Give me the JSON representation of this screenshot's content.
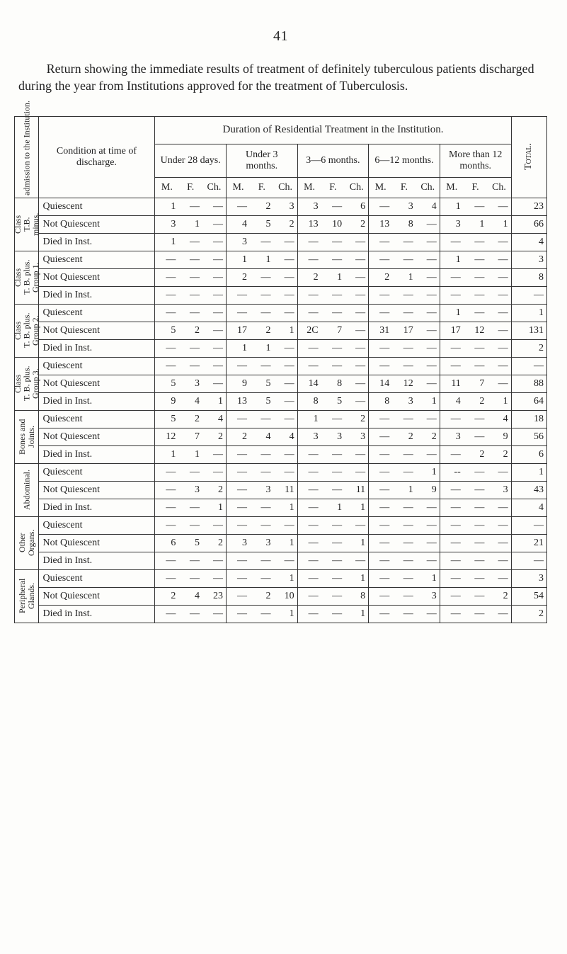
{
  "page_number": "41",
  "intro": "Return showing the immediate results of treatment of definitely tuberculous patients discharged during the year from Institutions approved for the treatment of Tuberculosis.",
  "duration_title": "Duration of Residential Treatment in the Institution.",
  "side_header": "admission to the Institution.",
  "cond_header": "Condition at time of discharge.",
  "periods": [
    "Under 28 days.",
    "Under 3 months.",
    "3—6 months.",
    "6—12 months.",
    "More than 12 months."
  ],
  "subcols": [
    "M.",
    "F.",
    "Ch."
  ],
  "total_label": "Total.",
  "dash": "—",
  "groups": [
    {
      "label": "Class\nT.B.\nminus.",
      "rows": [
        {
          "cond": "Quiescent",
          "cells": [
            "1",
            "—",
            "—",
            "—",
            "2",
            "3",
            "3",
            "—",
            "6",
            "—",
            "3",
            "4",
            "1",
            "—",
            "—"
          ],
          "total": "23"
        },
        {
          "cond": "Not Quiescent",
          "cells": [
            "3",
            "1",
            "—",
            "4",
            "5",
            "2",
            "13",
            "10",
            "2",
            "13",
            "8",
            "—",
            "3",
            "1",
            "1"
          ],
          "total": "66"
        },
        {
          "cond": "Died in Inst.",
          "cells": [
            "1",
            "—",
            "—",
            "3",
            "—",
            "—",
            "—",
            "—",
            "—",
            "—",
            "—",
            "—",
            "—",
            "—",
            "—"
          ],
          "total": "4"
        }
      ]
    },
    {
      "label": "Class\nT. B. plus.\nGroup 1.",
      "rows": [
        {
          "cond": "Quiescent",
          "cells": [
            "—",
            "—",
            "—",
            "1",
            "1",
            "—",
            "—",
            "—",
            "—",
            "—",
            "—",
            "—",
            "1",
            "—",
            "—"
          ],
          "total": "3"
        },
        {
          "cond": "Not Quiescent",
          "cells": [
            "—",
            "—",
            "—",
            "2",
            "—",
            "—",
            "2",
            "1",
            "—",
            "2",
            "1",
            "—",
            "—",
            "—",
            "—"
          ],
          "total": "8"
        },
        {
          "cond": "Died in Inst.",
          "cells": [
            "—",
            "—",
            "—",
            "—",
            "—",
            "—",
            "—",
            "—",
            "—",
            "—",
            "—",
            "—",
            "—",
            "—",
            "—"
          ],
          "total": "—"
        }
      ]
    },
    {
      "label": "Class\nT. B. plus.\nGroup 2.",
      "rows": [
        {
          "cond": "Quiescent",
          "cells": [
            "—",
            "—",
            "—",
            "—",
            "—",
            "—",
            "—",
            "—",
            "—",
            "—",
            "—",
            "—",
            "1",
            "—",
            "—"
          ],
          "total": "1"
        },
        {
          "cond": "Not Quiescent",
          "cells": [
            "5",
            "2",
            "—",
            "17",
            "2",
            "1",
            "2C",
            "7",
            "—",
            "31",
            "17",
            "—",
            "17",
            "12",
            "—"
          ],
          "total": "131"
        },
        {
          "cond": "Died in Inst.",
          "cells": [
            "—",
            "—",
            "—",
            "1",
            "1",
            "—",
            "—",
            "—",
            "—",
            "—",
            "—",
            "—",
            "—",
            "—",
            "—"
          ],
          "total": "2"
        }
      ]
    },
    {
      "label": "Class\nT. B. plus.\nGroup 3.",
      "rows": [
        {
          "cond": "Quiescent",
          "cells": [
            "—",
            "—",
            "—",
            "—",
            "—",
            "—",
            "—",
            "—",
            "—",
            "—",
            "—",
            "—",
            "—",
            "—",
            "—"
          ],
          "total": "—"
        },
        {
          "cond": "Not Quiescent",
          "cells": [
            "5",
            "3",
            "—",
            "9",
            "5",
            "—",
            "14",
            "8",
            "—",
            "14",
            "12",
            "—",
            "11",
            "7",
            "—"
          ],
          "total": "88"
        },
        {
          "cond": "Died in Inst.",
          "cells": [
            "9",
            "4",
            "1",
            "13",
            "5",
            "—",
            "8",
            "5",
            "—",
            "8",
            "3",
            "1",
            "4",
            "2",
            "1"
          ],
          "total": "64"
        }
      ]
    },
    {
      "label": "Bones and\nJoints.",
      "rows": [
        {
          "cond": "Quiescent",
          "cells": [
            "5",
            "2",
            "4",
            "—",
            "—",
            "—",
            "1",
            "—",
            "2",
            "—",
            "—",
            "—",
            "—",
            "—",
            "4"
          ],
          "total": "18"
        },
        {
          "cond": "Not Quiescent",
          "cells": [
            "12",
            "7",
            "2",
            "2",
            "4",
            "4",
            "3",
            "3",
            "3",
            "—",
            "2",
            "2",
            "3",
            "—",
            "9"
          ],
          "total": "56"
        },
        {
          "cond": "Died in Inst.",
          "cells": [
            "1",
            "1",
            "—",
            "—",
            "—",
            "—",
            "—",
            "—",
            "—",
            "—",
            "—",
            "—",
            "—",
            "2",
            "2"
          ],
          "total": "6"
        }
      ]
    },
    {
      "label": "Abdominal.",
      "rows": [
        {
          "cond": "Quiescent",
          "cells": [
            "—",
            "—",
            "—",
            "—",
            "—",
            "—",
            "—",
            "—",
            "—",
            "—",
            "—",
            "1",
            "--",
            "—",
            "—"
          ],
          "total": "1"
        },
        {
          "cond": "Not Quiescent",
          "cells": [
            "—",
            "3",
            "2",
            "—",
            "3",
            "11",
            "—",
            "—",
            "11",
            "—",
            "1",
            "9",
            "—",
            "—",
            "3"
          ],
          "total": "43"
        },
        {
          "cond": "Died in Inst.",
          "cells": [
            "—",
            "—",
            "1",
            "—",
            "—",
            "1",
            "—",
            "1",
            "1",
            "—",
            "—",
            "—",
            "—",
            "—",
            "—"
          ],
          "total": "4"
        }
      ]
    },
    {
      "label": "Other\nOrgans.",
      "rows": [
        {
          "cond": "Quiescent",
          "cells": [
            "—",
            "—",
            "—",
            "—",
            "—",
            "—",
            "—",
            "—",
            "—",
            "—",
            "—",
            "—",
            "—",
            "—",
            "—"
          ],
          "total": "—"
        },
        {
          "cond": "Not Quiescent",
          "cells": [
            "6",
            "5",
            "2",
            "3",
            "3",
            "1",
            "—",
            "—",
            "1",
            "—",
            "—",
            "—",
            "—",
            "—",
            "—"
          ],
          "total": "21"
        },
        {
          "cond": "Died in Inst.",
          "cells": [
            "—",
            "—",
            "—",
            "—",
            "—",
            "—",
            "—",
            "—",
            "—",
            "—",
            "—",
            "—",
            "—",
            "—",
            "—"
          ],
          "total": "—"
        }
      ]
    },
    {
      "label": "Peripheral\nGlands.",
      "rows": [
        {
          "cond": "Quiescent",
          "cells": [
            "—",
            "—",
            "—",
            "—",
            "—",
            "1",
            "—",
            "—",
            "1",
            "—",
            "—",
            "1",
            "—",
            "—",
            "—"
          ],
          "total": "3"
        },
        {
          "cond": "Not Quiescent",
          "cells": [
            "2",
            "4",
            "23",
            "—",
            "2",
            "10",
            "—",
            "—",
            "8",
            "—",
            "—",
            "3",
            "—",
            "—",
            "2"
          ],
          "total": "54"
        },
        {
          "cond": "Died in Inst.",
          "cells": [
            "—",
            "—",
            "—",
            "—",
            "—",
            "1",
            "—",
            "—",
            "1",
            "—",
            "—",
            "—",
            "—",
            "—",
            "—"
          ],
          "total": "2"
        }
      ]
    }
  ]
}
